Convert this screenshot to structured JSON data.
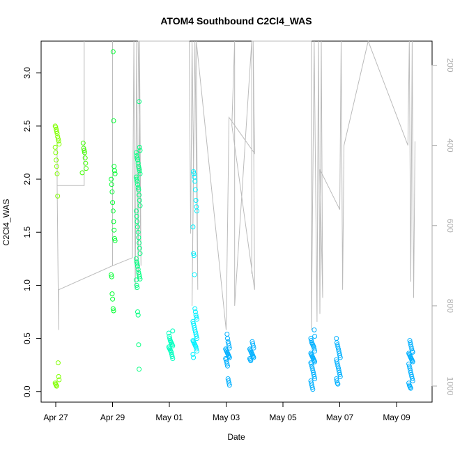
{
  "chart_data": {
    "type": "scatter",
    "title": "ATOM4 Southbound C2Cl4_WAS",
    "xlabel": "Date",
    "ylabel": "C2Cl4_WAS",
    "x_ticks": [
      "Apr 27",
      "Apr 29",
      "May 01",
      "May 03",
      "May 05",
      "May 07",
      "May 09"
    ],
    "x_range_days": [
      26.6,
      40.2
    ],
    "y_ticks": [
      "0.0",
      "0.5",
      "1.0",
      "1.5",
      "2.0",
      "2.5",
      "3.0"
    ],
    "ylim": [
      -0.1,
      3.3
    ],
    "right_axis": {
      "ticks": [
        "200",
        "400",
        "600",
        "800",
        "1000"
      ],
      "range": [
        1040,
        140
      ],
      "color": "#aaaaaa"
    },
    "grid": false,
    "legend": "none",
    "point_colors": [
      "#80ff00",
      "#40ff00",
      "#00ff30",
      "#00ff80",
      "#00ffc0",
      "#00f0ff",
      "#00b0ff"
    ],
    "series": [
      {
        "day": 27.05,
        "y": [
          2.5,
          2.49,
          2.47,
          2.45,
          2.43,
          2.4,
          2.38,
          2.36,
          2.33,
          2.3,
          2.25,
          2.18,
          2.12,
          2.05,
          1.84,
          0.27,
          0.14,
          0.11,
          0.08,
          0.07,
          0.06,
          0.05
        ]
      },
      {
        "day": 28.0,
        "y": [
          2.34,
          2.29,
          2.27,
          2.25,
          2.2,
          2.15,
          2.1,
          2.06
        ]
      },
      {
        "day": 29.02,
        "y": [
          3.2,
          2.55,
          2.12,
          2.08,
          2.05,
          2.0,
          1.95,
          1.88,
          1.78,
          1.7,
          1.6,
          1.52,
          1.44,
          1.42,
          1.1,
          1.08,
          0.92,
          0.87,
          0.78,
          0.76
        ]
      },
      {
        "day": 29.9,
        "y": [
          2.73,
          2.3,
          2.27,
          2.25,
          2.22,
          2.2,
          2.18,
          2.15,
          2.12,
          2.1,
          2.08,
          2.05,
          2.02,
          2.0,
          1.98,
          1.95,
          1.92,
          1.9,
          1.85,
          1.8,
          1.75,
          1.7,
          1.65,
          1.6,
          1.55,
          1.5,
          1.45,
          1.4,
          1.35,
          1.3,
          1.25,
          1.22,
          1.2,
          1.18,
          1.15,
          1.12,
          1.1,
          1.08,
          1.06,
          1.05,
          1.0,
          0.98,
          0.75,
          0.72,
          0.44,
          0.21
        ]
      },
      {
        "day": 31.05,
        "y": [
          0.57,
          0.55,
          0.52,
          0.5,
          0.48,
          0.47,
          0.46,
          0.45,
          0.44,
          0.43,
          0.42,
          0.41,
          0.4,
          0.39,
          0.38,
          0.37,
          0.35,
          0.33,
          0.31
        ]
      },
      {
        "day": 31.9,
        "y": [
          2.07,
          2.05,
          2.02,
          1.98,
          1.9,
          1.8,
          1.74,
          1.7,
          1.55,
          1.3,
          1.28,
          1.1,
          0.78,
          0.75,
          0.72,
          0.7,
          0.68,
          0.66,
          0.64,
          0.62,
          0.6,
          0.58,
          0.56,
          0.54,
          0.52,
          0.5,
          0.48,
          0.47,
          0.46,
          0.45,
          0.44,
          0.43,
          0.42,
          0.4,
          0.38,
          0.35,
          0.32
        ]
      },
      {
        "day": 33.05,
        "y": [
          0.54,
          0.5,
          0.47,
          0.45,
          0.43,
          0.41,
          0.4,
          0.39,
          0.38,
          0.37,
          0.36,
          0.35,
          0.34,
          0.33,
          0.32,
          0.31,
          0.3,
          0.28,
          0.26,
          0.24,
          0.12,
          0.1,
          0.08,
          0.06
        ]
      },
      {
        "day": 33.9,
        "y": [
          0.47,
          0.45,
          0.43,
          0.41,
          0.4,
          0.39,
          0.38,
          0.37,
          0.36,
          0.35,
          0.34,
          0.33,
          0.32,
          0.31,
          0.3,
          0.29
        ]
      },
      {
        "day": 36.05,
        "y": [
          0.58,
          0.52,
          0.5,
          0.48,
          0.46,
          0.45,
          0.44,
          0.43,
          0.42,
          0.4,
          0.38,
          0.36,
          0.35,
          0.34,
          0.33,
          0.32,
          0.31,
          0.3,
          0.29,
          0.28,
          0.27,
          0.26,
          0.24,
          0.22,
          0.2,
          0.18,
          0.16,
          0.14,
          0.12,
          0.1,
          0.08,
          0.06,
          0.04,
          0.02
        ]
      },
      {
        "day": 36.95,
        "y": [
          0.5,
          0.46,
          0.44,
          0.42,
          0.4,
          0.38,
          0.36,
          0.34,
          0.32,
          0.3,
          0.28,
          0.26,
          0.24,
          0.22,
          0.2,
          0.18,
          0.16,
          0.14,
          0.12,
          0.1,
          0.08,
          0.07
        ]
      },
      {
        "day": 39.5,
        "y": [
          0.48,
          0.46,
          0.44,
          0.42,
          0.4,
          0.38,
          0.37,
          0.36,
          0.35,
          0.34,
          0.33,
          0.32,
          0.31,
          0.3,
          0.29,
          0.28,
          0.26,
          0.24,
          0.22,
          0.2,
          0.18,
          0.16,
          0.14,
          0.12,
          0.1,
          0.08,
          0.06,
          0.05,
          0.04,
          0.03
        ]
      }
    ],
    "trace": [
      [
        27.05,
        390
      ],
      [
        27.05,
        500
      ],
      [
        28.0,
        500
      ],
      [
        28.0,
        140
      ],
      [
        28.0,
        500
      ],
      [
        27.05,
        500
      ],
      [
        27.1,
        860
      ],
      [
        27.1,
        760
      ],
      [
        29.0,
        700
      ],
      [
        29.0,
        140
      ],
      [
        29.0,
        700
      ],
      [
        29.7,
        680
      ],
      [
        29.75,
        140
      ],
      [
        29.8,
        760
      ],
      [
        29.85,
        140
      ],
      [
        29.9,
        740
      ],
      [
        29.95,
        140
      ],
      [
        30.0,
        700
      ],
      [
        29.9,
        140
      ],
      [
        31.7,
        140
      ],
      [
        31.75,
        620
      ],
      [
        31.8,
        140
      ],
      [
        31.85,
        440
      ],
      [
        31.8,
        800
      ],
      [
        31.9,
        140
      ],
      [
        32.0,
        760
      ],
      [
        31.95,
        140
      ],
      [
        33.0,
        860
      ],
      [
        33.1,
        330
      ],
      [
        34.0,
        420
      ],
      [
        33.95,
        140
      ],
      [
        34.0,
        760
      ],
      [
        33.2,
        350
      ],
      [
        33.3,
        140
      ],
      [
        33.3,
        800
      ],
      [
        33.9,
        140
      ],
      [
        33.9,
        720
      ],
      [
        33.9,
        140
      ],
      [
        36.0,
        140
      ],
      [
        36.0,
        860
      ],
      [
        36.1,
        140
      ],
      [
        36.2,
        840
      ],
      [
        36.25,
        140
      ],
      [
        36.3,
        820
      ],
      [
        36.35,
        140
      ],
      [
        36.4,
        780
      ],
      [
        36.3,
        460
      ],
      [
        37.0,
        560
      ],
      [
        37.05,
        140
      ],
      [
        37.1,
        760
      ],
      [
        37.15,
        400
      ],
      [
        38.0,
        140
      ],
      [
        39.4,
        400
      ],
      [
        39.45,
        140
      ],
      [
        39.5,
        740
      ],
      [
        39.55,
        140
      ],
      [
        39.6,
        780
      ],
      [
        39.65,
        390
      ]
    ]
  }
}
